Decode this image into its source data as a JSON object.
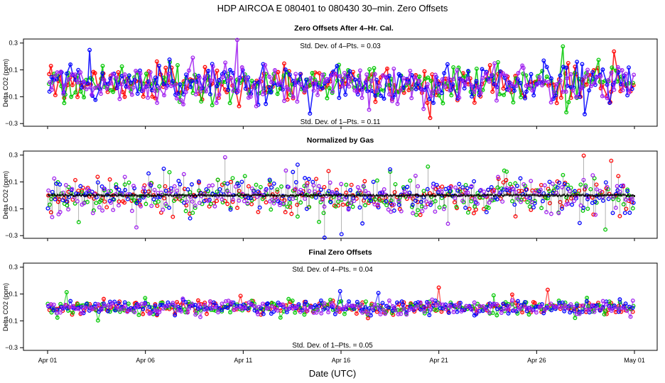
{
  "chart_data": {
    "type": "scatter",
    "title": "HDP    AIRCOA E    080401 to 080430   30–min. Zero Offsets",
    "xlabel": "Date (UTC)",
    "x_ticks": [
      "Apr 01",
      "Apr 06",
      "Apr 11",
      "Apr 16",
      "Apr 21",
      "Apr 26",
      "May 01"
    ],
    "x_range_days": [
      0,
      30
    ],
    "series_colors": [
      "#ff0000",
      "#00c800",
      "#0000ff",
      "#a020f0"
    ],
    "panels": [
      {
        "title": "Zero Offsets After 4–Hr. Cal.",
        "ylabel": "Delta CO2 (ppm)",
        "ylim": [
          -0.32,
          0.33
        ],
        "y_ticks": [
          "0.3",
          "0.1",
          "−0.1",
          "−0.3"
        ],
        "y_tick_values": [
          0.3,
          0.1,
          -0.1,
          -0.3
        ],
        "top_note": "Std. Dev. of 4–Pts. = 0.03",
        "bottom_note": "Std. Dev. of 1–Pts. = 0.11",
        "spread": 0.11,
        "mean_line": false
      },
      {
        "title": "Normalized by Gas",
        "ylabel": "Delta CO2 (ppm)",
        "ylim": [
          -0.32,
          0.33
        ],
        "y_ticks": [
          "0.3",
          "0.1",
          "−0.1",
          "−0.3"
        ],
        "y_tick_values": [
          0.3,
          0.1,
          -0.1,
          -0.3
        ],
        "top_note": "",
        "bottom_note": "",
        "spread": 0.11,
        "mean_line": true
      },
      {
        "title": "Final Zero Offsets",
        "ylabel": "Delta CO2 (ppm)",
        "ylim": [
          -0.32,
          0.33
        ],
        "y_ticks": [
          "0.3",
          "0.1",
          "−0.1",
          "−0.3"
        ],
        "y_tick_values": [
          0.3,
          0.1,
          -0.1,
          -0.3
        ],
        "top_note": "Std. Dev. of 4–Pts. = 0.04",
        "bottom_note": "Std. Dev. of 1–Pts. = 0.05",
        "spread": 0.04,
        "mean_line": false
      }
    ],
    "points_per_series": 200
  }
}
